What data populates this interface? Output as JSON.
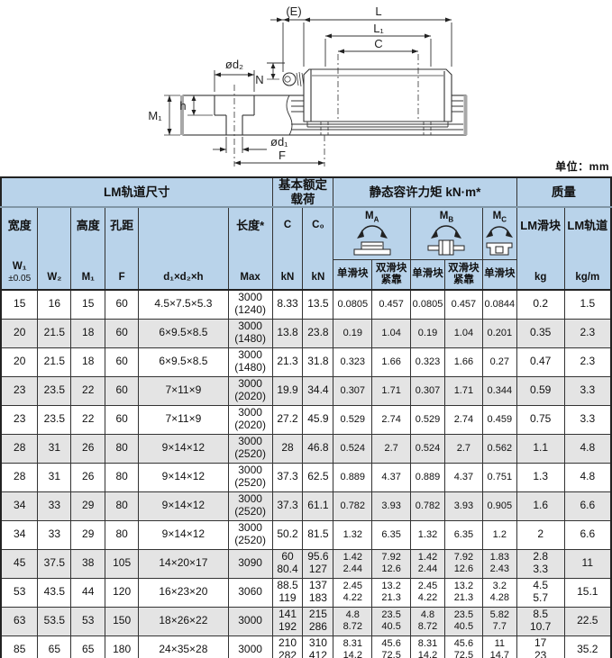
{
  "unit_note": "单位：mm",
  "diagram": {
    "labels": {
      "e": "(E)",
      "l": "L",
      "l1": "L₁",
      "c": "C",
      "n": "N",
      "d2": "ød₂",
      "h": "h",
      "m1": "M₁",
      "d1": "ød₁",
      "f": "F"
    }
  },
  "table": {
    "groups": [
      "LM轨道尺寸",
      "基本额定载荷",
      "静态容许力矩  kN·m*",
      "质量"
    ],
    "head": {
      "width": "宽度",
      "w1": "W₁",
      "w1_tol": "±0.05",
      "w2": "W₂",
      "height": "高度",
      "m1": "M₁",
      "hole_pitch": "孔距",
      "f": "F",
      "ddh": "d₁×d₂×h",
      "length": "长度*",
      "max": "Max",
      "c": "C",
      "c0": "C₀",
      "kn": "kN",
      "m_prefix": "M",
      "ma_sub": "A",
      "mb_sub": "B",
      "mc_sub": "C",
      "single_block": "单滑块",
      "double_block": "双滑块\n紧靠",
      "lm_block": "LM滑块",
      "kg": "kg",
      "lm_rail": "LM轨道",
      "kg_m": "kg/m"
    },
    "rows": [
      [
        "15",
        "16",
        "15",
        "60",
        "4.5×7.5×5.3",
        "3000\n(1240)",
        "8.33",
        "13.5",
        "0.0805",
        "0.457",
        "0.0805",
        "0.457",
        "0.0844",
        "0.2",
        "1.5"
      ],
      [
        "20",
        "21.5",
        "18",
        "60",
        "6×9.5×8.5",
        "3000\n(1480)",
        "13.8",
        "23.8",
        "0.19",
        "1.04",
        "0.19",
        "1.04",
        "0.201",
        "0.35",
        "2.3"
      ],
      [
        "20",
        "21.5",
        "18",
        "60",
        "6×9.5×8.5",
        "3000\n(1480)",
        "21.3",
        "31.8",
        "0.323",
        "1.66",
        "0.323",
        "1.66",
        "0.27",
        "0.47",
        "2.3"
      ],
      [
        "23",
        "23.5",
        "22",
        "60",
        "7×11×9",
        "3000\n(2020)",
        "19.9",
        "34.4",
        "0.307",
        "1.71",
        "0.307",
        "1.71",
        "0.344",
        "0.59",
        "3.3"
      ],
      [
        "23",
        "23.5",
        "22",
        "60",
        "7×11×9",
        "3000\n(2020)",
        "27.2",
        "45.9",
        "0.529",
        "2.74",
        "0.529",
        "2.74",
        "0.459",
        "0.75",
        "3.3"
      ],
      [
        "28",
        "31",
        "26",
        "80",
        "9×14×12",
        "3000\n(2520)",
        "28",
        "46.8",
        "0.524",
        "2.7",
        "0.524",
        "2.7",
        "0.562",
        "1.1",
        "4.8"
      ],
      [
        "28",
        "31",
        "26",
        "80",
        "9×14×12",
        "3000\n(2520)",
        "37.3",
        "62.5",
        "0.889",
        "4.37",
        "0.889",
        "4.37",
        "0.751",
        "1.3",
        "4.8"
      ],
      [
        "34",
        "33",
        "29",
        "80",
        "9×14×12",
        "3000\n(2520)",
        "37.3",
        "61.1",
        "0.782",
        "3.93",
        "0.782",
        "3.93",
        "0.905",
        "1.6",
        "6.6"
      ],
      [
        "34",
        "33",
        "29",
        "80",
        "9×14×12",
        "3000\n(2520)",
        "50.2",
        "81.5",
        "1.32",
        "6.35",
        "1.32",
        "6.35",
        "1.2",
        "2",
        "6.6"
      ],
      [
        "45",
        "37.5",
        "38",
        "105",
        "14×20×17",
        "3090",
        "60\n80.4",
        "95.6\n127",
        "1.42\n2.44",
        "7.92\n12.6",
        "1.42\n2.44",
        "7.92\n12.6",
        "1.83\n2.43",
        "2.8\n3.3",
        "11"
      ],
      [
        "53",
        "43.5",
        "44",
        "120",
        "16×23×20",
        "3060",
        "88.5\n119",
        "137\n183",
        "2.45\n4.22",
        "13.2\n21.3",
        "2.45\n4.22",
        "13.2\n21.3",
        "3.2\n4.28",
        "4.5\n5.7",
        "15.1"
      ],
      [
        "63",
        "53.5",
        "53",
        "150",
        "18×26×22",
        "3000",
        "141\n192",
        "215\n286",
        "4.8\n8.72",
        "23.5\n40.5",
        "4.8\n8.72",
        "23.5\n40.5",
        "5.82\n7.7",
        "8.5\n10.7",
        "22.5"
      ],
      [
        "85",
        "65",
        "65",
        "180",
        "24×35×28",
        "3000",
        "210\n282",
        "310\n412",
        "8.31\n14.2",
        "45.6\n72.5",
        "8.31\n14.2",
        "45.6\n72.5",
        "11\n14.7",
        "17\n23",
        "35.2"
      ]
    ]
  }
}
